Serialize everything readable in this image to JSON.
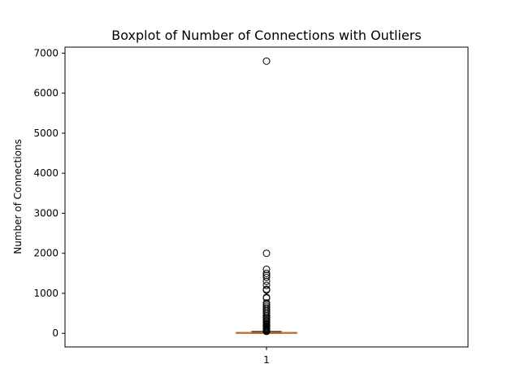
{
  "chart_data": {
    "type": "box",
    "title": "Boxplot of Number of Connections with Outliers",
    "xlabel": "",
    "ylabel": "Number of Connections",
    "categories": [
      "1"
    ],
    "y_ticks": [
      0,
      1000,
      2000,
      3000,
      4000,
      5000,
      6000,
      7000
    ],
    "ylim": [
      -340,
      7150
    ],
    "grid": false,
    "box": {
      "whislo": 0,
      "q1": 3,
      "median": 8,
      "q3": 20,
      "whishi": 45
    },
    "outliers": [
      6800,
      2000,
      1600,
      1500,
      1450,
      1400,
      1300,
      1200,
      1100,
      1080,
      900,
      880,
      760,
      720,
      680,
      640,
      600,
      560,
      520,
      480,
      440,
      400,
      370,
      340,
      310,
      280,
      250,
      220,
      190,
      170,
      150,
      130,
      110,
      95,
      80,
      65,
      55,
      48
    ],
    "colors": {
      "median": "#ff7f0e",
      "box": "#000000",
      "outlier": "#000000"
    }
  }
}
